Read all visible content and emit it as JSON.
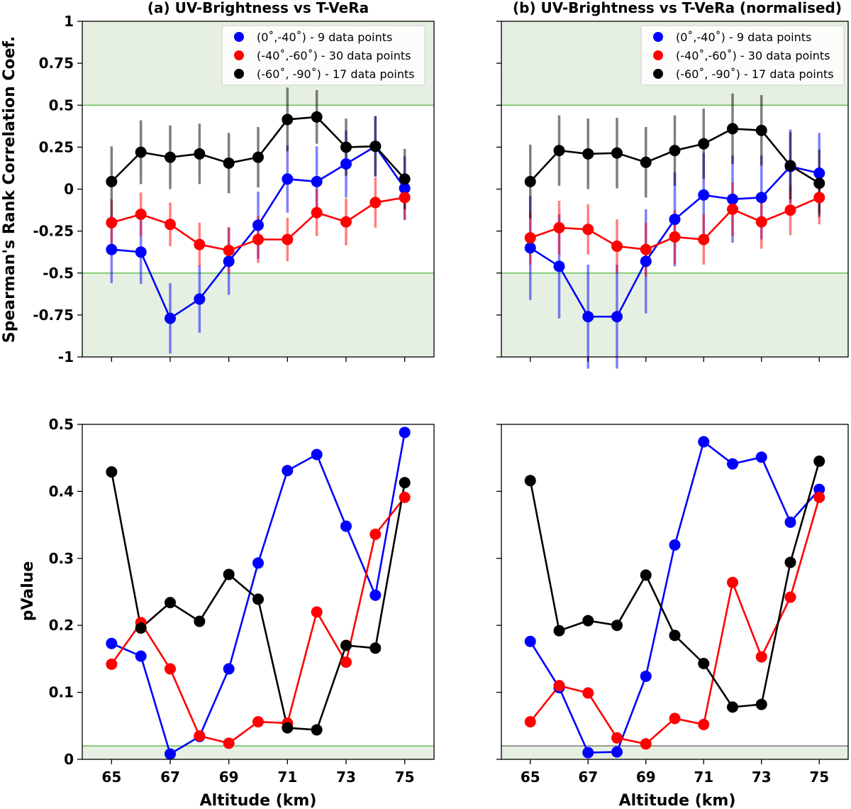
{
  "chart_data": [
    {
      "id": "a_top",
      "type": "line",
      "title": "(a) UV-Brightness vs T-VeRa",
      "xlabel": "",
      "ylabel": "Spearman's Rank Correlation Coef.",
      "xlim": [
        64,
        76
      ],
      "ylim": [
        -1,
        1
      ],
      "x": [
        65,
        66,
        67,
        68,
        69,
        70,
        71,
        72,
        73,
        74,
        75
      ],
      "x_tick_labels": [
        "65",
        "67",
        "69",
        "71",
        "73",
        "75"
      ],
      "y_ticks": [
        1,
        0.75,
        0.5,
        0.25,
        0,
        -0.25,
        -0.5,
        -0.75,
        -1
      ],
      "y_tick_labels": [
        "1",
        "0.75",
        "0.5",
        "0.25",
        "0",
        "-0.25",
        "-0.5",
        "-0.75",
        "-1"
      ],
      "shaded_regions": [
        [
          0.5,
          1
        ],
        [
          -1,
          -0.5
        ]
      ],
      "threshold_lines": [
        0.5,
        -0.5
      ],
      "legend": [
        "(0˚,-40˚) - 9 data points",
        "(-40˚,-60˚) - 30 data points",
        "(-60˚, -90˚) - 17 data points"
      ],
      "series": [
        {
          "name": "(0˚,-40˚) - 9 data points",
          "color": "#0000ff",
          "values": [
            -0.36,
            -0.375,
            -0.77,
            -0.655,
            -0.43,
            -0.215,
            0.06,
            0.045,
            0.15,
            0.255,
            0.005
          ],
          "errors": [
            0.2,
            0.19,
            0.21,
            0.2,
            0.2,
            0.2,
            0.2,
            0.21,
            0.2,
            0.18,
            0.19
          ]
        },
        {
          "name": "(-40˚,-60˚) - 30 data points",
          "color": "#ff0000",
          "values": [
            -0.2,
            -0.15,
            -0.21,
            -0.33,
            -0.365,
            -0.3,
            -0.3,
            -0.14,
            -0.195,
            -0.08,
            -0.05
          ],
          "errors": [
            0.14,
            0.13,
            0.13,
            0.13,
            0.14,
            0.14,
            0.13,
            0.14,
            0.14,
            0.15,
            0.13
          ]
        },
        {
          "name": "(-60˚, -90˚) - 17 data points",
          "color": "#000000",
          "values": [
            0.045,
            0.22,
            0.19,
            0.21,
            0.155,
            0.19,
            0.415,
            0.43,
            0.25,
            0.255,
            0.06
          ],
          "errors": [
            0.21,
            0.19,
            0.19,
            0.18,
            0.18,
            0.18,
            0.19,
            0.16,
            0.17,
            0.18,
            0.18
          ]
        }
      ]
    },
    {
      "id": "b_top",
      "type": "line",
      "title": "(b) UV-Brightness vs T-VeRa (normalised)",
      "xlabel": "",
      "ylabel": "",
      "xlim": [
        64,
        76
      ],
      "ylim": [
        -1,
        1
      ],
      "x": [
        65,
        66,
        67,
        68,
        69,
        70,
        71,
        72,
        73,
        74,
        75
      ],
      "shaded_regions": [
        [
          0.5,
          1
        ],
        [
          -1,
          -0.5
        ]
      ],
      "threshold_lines": [
        0.5,
        -0.5
      ],
      "legend": [
        "(0˚,-40˚) - 9 data points",
        "(-40˚,-60˚) - 30 data points",
        "(-60˚, -90˚) - 17 data points"
      ],
      "series": [
        {
          "name": "(0˚,-40˚) - 9 data points",
          "color": "#0000ff",
          "values": [
            -0.35,
            -0.46,
            -0.76,
            -0.76,
            -0.43,
            -0.18,
            -0.035,
            -0.06,
            -0.05,
            0.135,
            0.095
          ],
          "errors": [
            0.31,
            0.31,
            0.31,
            0.31,
            0.31,
            0.28,
            0.25,
            0.26,
            0.25,
            0.22,
            0.24
          ]
        },
        {
          "name": "(-40˚,-60˚) - 30 data points",
          "color": "#ff0000",
          "values": [
            -0.29,
            -0.23,
            -0.24,
            -0.34,
            -0.36,
            -0.285,
            -0.3,
            -0.12,
            -0.195,
            -0.125,
            -0.05
          ],
          "errors": [
            0.16,
            0.16,
            0.15,
            0.16,
            0.16,
            0.16,
            0.15,
            0.16,
            0.16,
            0.15,
            0.16
          ]
        },
        {
          "name": "(-60˚, -90˚) - 17 data points",
          "color": "#000000",
          "values": [
            0.045,
            0.23,
            0.21,
            0.215,
            0.16,
            0.23,
            0.27,
            0.36,
            0.35,
            0.14,
            0.035
          ],
          "errors": [
            0.22,
            0.21,
            0.21,
            0.21,
            0.21,
            0.21,
            0.21,
            0.21,
            0.21,
            0.2,
            0.2
          ]
        }
      ]
    },
    {
      "id": "a_bottom",
      "type": "line",
      "title": "",
      "xlabel": "Altitude (km)",
      "ylabel": "pValue",
      "xlim": [
        64,
        76
      ],
      "ylim": [
        0,
        0.5
      ],
      "x": [
        65,
        66,
        67,
        68,
        69,
        70,
        71,
        72,
        73,
        74,
        75
      ],
      "x_tick_labels": [
        "65",
        "67",
        "69",
        "71",
        "73",
        "75"
      ],
      "y_ticks": [
        0,
        0.1,
        0.2,
        0.3,
        0.4,
        0.5
      ],
      "y_tick_labels": [
        "0",
        "0.1",
        "0.2",
        "0.3",
        "0.4",
        "0.5"
      ],
      "shaded_regions": [
        [
          0,
          0.02
        ]
      ],
      "threshold_lines": [
        0.02
      ],
      "series": [
        {
          "name": "(0˚,-40˚)",
          "color": "#0000ff",
          "values": [
            0.173,
            0.154,
            0.008,
            0.034,
            0.135,
            0.293,
            0.431,
            0.455,
            0.348,
            0.245,
            0.488
          ]
        },
        {
          "name": "(-40˚,-60˚)",
          "color": "#ff0000",
          "values": [
            0.142,
            0.204,
            0.135,
            0.035,
            0.024,
            0.056,
            0.054,
            0.22,
            0.145,
            0.336,
            0.391
          ]
        },
        {
          "name": "(-60˚, -90˚)",
          "color": "#000000",
          "values": [
            0.429,
            0.196,
            0.234,
            0.206,
            0.276,
            0.239,
            0.047,
            0.044,
            0.17,
            0.166,
            0.413
          ]
        }
      ]
    },
    {
      "id": "b_bottom",
      "type": "line",
      "title": "",
      "xlabel": "Altitude (km)",
      "ylabel": "",
      "xlim": [
        64,
        76
      ],
      "ylim": [
        0,
        0.5
      ],
      "x": [
        65,
        66,
        67,
        68,
        69,
        70,
        71,
        72,
        73,
        74,
        75
      ],
      "x_tick_labels": [
        "65",
        "67",
        "69",
        "71",
        "73",
        "75"
      ],
      "shaded_regions": [
        [
          0,
          0.02
        ]
      ],
      "threshold_lines": [
        0.02
      ],
      "series": [
        {
          "name": "(0˚,-40˚)",
          "color": "#0000ff",
          "values": [
            0.176,
            0.107,
            0.01,
            0.011,
            0.124,
            0.32,
            0.474,
            0.441,
            0.451,
            0.354,
            0.403
          ]
        },
        {
          "name": "(-40˚,-60˚)",
          "color": "#ff0000",
          "values": [
            0.056,
            0.11,
            0.099,
            0.032,
            0.023,
            0.061,
            0.052,
            0.264,
            0.153,
            0.242,
            0.391
          ]
        },
        {
          "name": "(-60˚, -90˚)",
          "color": "#000000",
          "values": [
            0.416,
            0.192,
            0.207,
            0.2,
            0.275,
            0.185,
            0.143,
            0.078,
            0.082,
            0.294,
            0.445
          ]
        }
      ]
    }
  ],
  "colors": {
    "shade": "#e6f0e2",
    "threshold_green": "#6abf5a",
    "threshold_gray": "#777777"
  }
}
